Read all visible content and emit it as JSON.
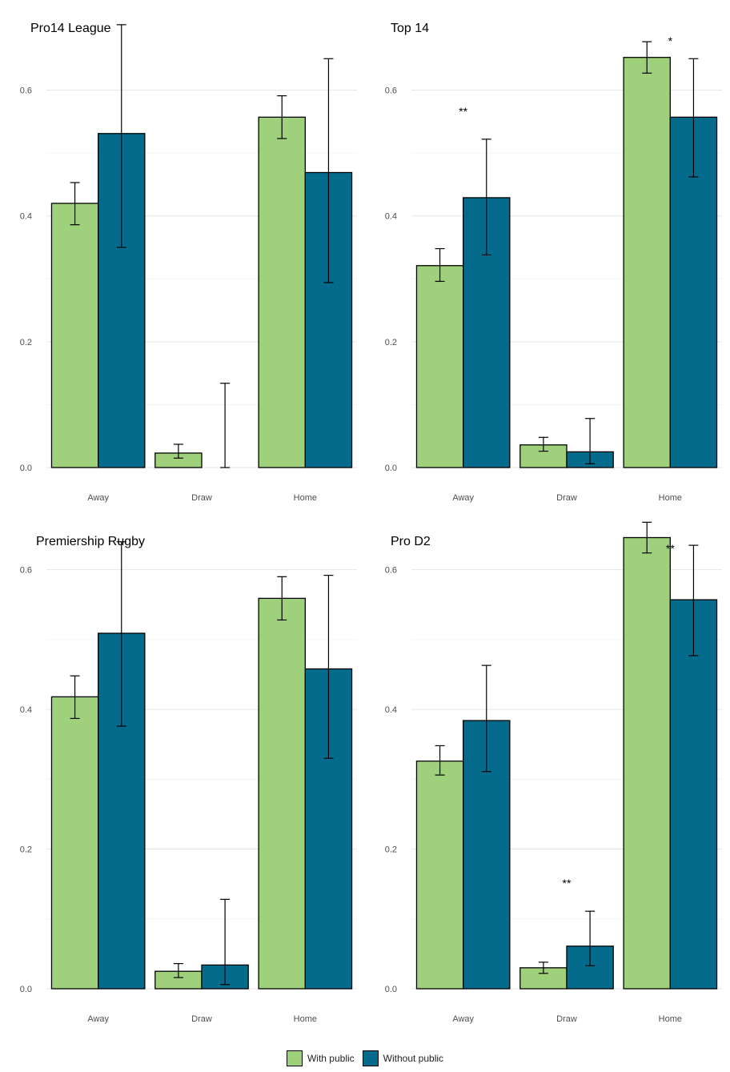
{
  "chart_data": [
    {
      "type": "bar",
      "title": "Pro14 League",
      "categories": [
        "Away",
        "Draw",
        "Home"
      ],
      "ylim": [
        0,
        0.7
      ],
      "yticks": [
        "0.0",
        "0.2",
        "0.4",
        "0.6"
      ],
      "series": [
        {
          "name": "With public",
          "values": [
            0.42,
            0.023,
            0.557
          ],
          "lower": [
            0.386,
            0.015,
            0.523
          ],
          "upper": [
            0.453,
            0.037,
            0.591
          ]
        },
        {
          "name": "Without public",
          "values": [
            0.531,
            0.0,
            0.469
          ],
          "lower": [
            0.35,
            0.0,
            0.294
          ],
          "upper": [
            0.704,
            0.134,
            0.65
          ]
        }
      ],
      "significance": [
        "",
        "",
        ""
      ]
    },
    {
      "type": "bar",
      "title": "Top 14",
      "categories": [
        "Away",
        "Draw",
        "Home"
      ],
      "ylim": [
        0,
        0.7
      ],
      "yticks": [
        "0.0",
        "0.2",
        "0.4",
        "0.6"
      ],
      "series": [
        {
          "name": "With public",
          "values": [
            0.321,
            0.036,
            0.652
          ],
          "lower": [
            0.296,
            0.026,
            0.627
          ],
          "upper": [
            0.348,
            0.048,
            0.677
          ]
        },
        {
          "name": "Without public",
          "values": [
            0.429,
            0.025,
            0.557
          ],
          "lower": [
            0.338,
            0.006,
            0.462
          ],
          "upper": [
            0.522,
            0.078,
            0.65
          ]
        }
      ],
      "significance": [
        "**",
        "",
        "*"
      ]
    },
    {
      "type": "bar",
      "title": "Premiership Rugby",
      "categories": [
        "Away",
        "Draw",
        "Home"
      ],
      "ylim": [
        0,
        0.65
      ],
      "yticks": [
        "0.0",
        "0.2",
        "0.4",
        "0.6"
      ],
      "series": [
        {
          "name": "With public",
          "values": [
            0.418,
            0.025,
            0.559
          ],
          "lower": [
            0.387,
            0.016,
            0.528
          ],
          "upper": [
            0.448,
            0.036,
            0.59
          ]
        },
        {
          "name": "Without public",
          "values": [
            0.509,
            0.034,
            0.458
          ],
          "lower": [
            0.376,
            0.006,
            0.33
          ],
          "upper": [
            0.64,
            0.128,
            0.592
          ]
        }
      ],
      "significance": [
        "",
        "",
        ""
      ]
    },
    {
      "type": "bar",
      "title": "Pro D2",
      "categories": [
        "Away",
        "Draw",
        "Home"
      ],
      "ylim": [
        0,
        0.65
      ],
      "yticks": [
        "0.0",
        "0.2",
        "0.4",
        "0.6"
      ],
      "series": [
        {
          "name": "With public",
          "values": [
            0.326,
            0.03,
            0.646
          ],
          "lower": [
            0.306,
            0.022,
            0.624
          ],
          "upper": [
            0.348,
            0.038,
            0.668
          ]
        },
        {
          "name": "Without public",
          "values": [
            0.384,
            0.061,
            0.557
          ],
          "lower": [
            0.311,
            0.033,
            0.477
          ],
          "upper": [
            0.463,
            0.111,
            0.635
          ]
        }
      ],
      "significance": [
        "",
        "**",
        "**"
      ]
    }
  ],
  "legend": {
    "items": [
      {
        "label": "With public",
        "color": "#9fd17c"
      },
      {
        "label": "Without public",
        "color": "#056b8c"
      }
    ]
  },
  "colors": {
    "with_public": "#9fd17c",
    "without_public": "#056b8c",
    "grid": "#e6e6e6",
    "outline": "#000000"
  }
}
